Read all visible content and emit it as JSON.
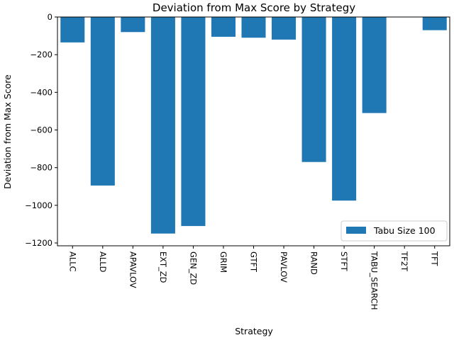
{
  "chart_data": {
    "type": "bar",
    "title": "Deviation from Max Score by Strategy",
    "xlabel": "Strategy",
    "ylabel": "Deviation from Max Score",
    "categories": [
      "ALLC",
      "ALLD",
      "APAVLOV",
      "EXT_ZD",
      "GEN_ZD",
      "GRIM",
      "GTFT",
      "PAVLOV",
      "RAND",
      "STFT",
      "TABU_SEARCH",
      "TF2T",
      "TFT"
    ],
    "series": [
      {
        "name": "Tabu Size 100",
        "color": "#1f77b4",
        "values": [
          -135,
          -895,
          -80,
          -1150,
          -1110,
          -105,
          -110,
          -120,
          -770,
          -975,
          -510,
          0,
          -70
        ]
      }
    ],
    "ylim": [
      -1215,
      0
    ],
    "yticks": [
      0,
      -200,
      -400,
      -600,
      -800,
      -1000,
      -1200
    ],
    "ytick_labels": [
      "0",
      "−200",
      "−400",
      "−600",
      "−800",
      "−1000",
      "−1200"
    ],
    "legend_position": "lower right",
    "grid": false
  }
}
